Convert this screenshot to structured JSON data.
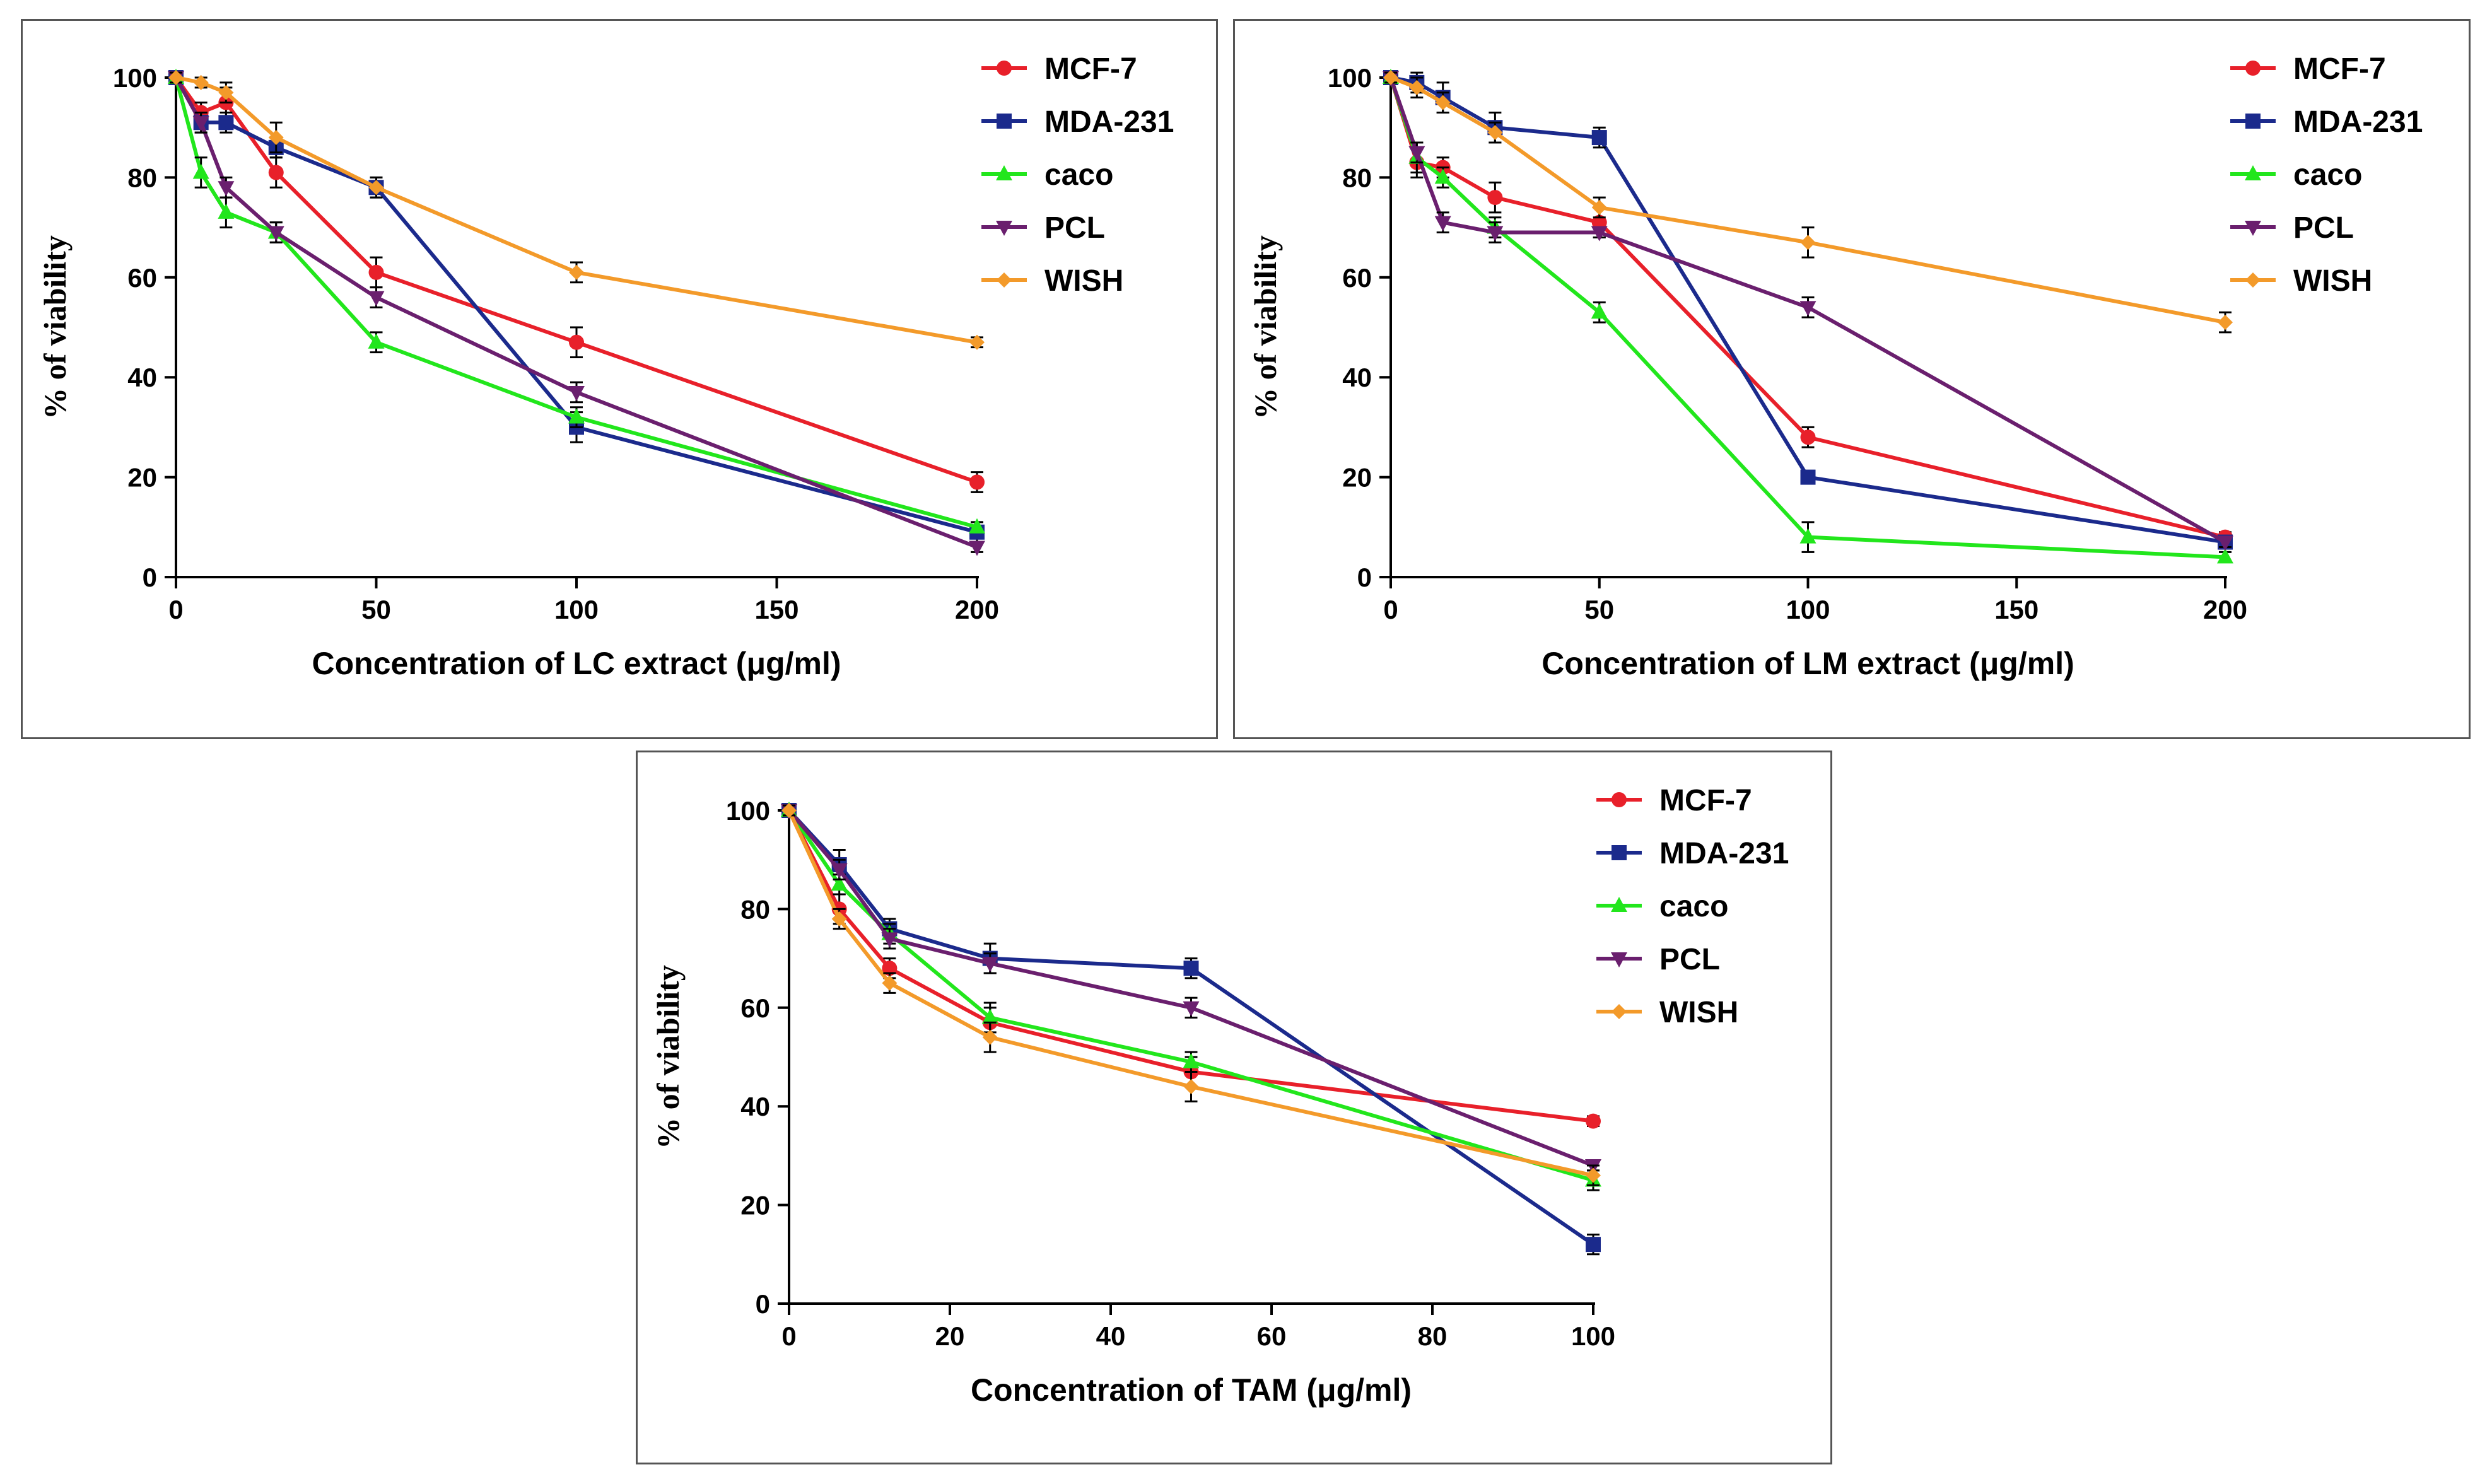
{
  "colors": {
    "MCF-7": "#e8202a",
    "MDA-231": "#1b2a8c",
    "caco": "#22e61c",
    "PCL": "#6a1f6e",
    "WISH": "#f39a2a",
    "axis": "#000000",
    "border": "#555555"
  },
  "chart_data": [
    {
      "type": "line",
      "title": "",
      "xlabel": "Concentration of LC extract (μg/ml)",
      "ylabel": "% of viability",
      "xlim": [
        0,
        200
      ],
      "ylim": [
        0,
        100
      ],
      "xticks": [
        0,
        50,
        100,
        150,
        200
      ],
      "yticks": [
        0,
        20,
        40,
        60,
        80,
        100
      ],
      "legend": "top-right",
      "x": [
        0,
        6.25,
        12.5,
        25,
        50,
        100,
        200
      ],
      "series": [
        {
          "name": "MCF-7",
          "marker": "circle",
          "values": [
            100,
            93,
            95,
            81,
            61,
            47,
            19
          ],
          "errors": [
            1,
            2,
            3,
            3,
            3,
            3,
            2
          ]
        },
        {
          "name": "MDA-231",
          "marker": "square",
          "values": [
            100,
            91,
            91,
            86,
            78,
            30,
            9
          ],
          "errors": [
            1,
            2,
            2,
            2,
            2,
            3,
            2
          ]
        },
        {
          "name": "caco",
          "marker": "triangle-up",
          "values": [
            100,
            81,
            73,
            69,
            47,
            32,
            10
          ],
          "errors": [
            1,
            3,
            3,
            2,
            2,
            2,
            1
          ]
        },
        {
          "name": "PCL",
          "marker": "triangle-down",
          "values": [
            100,
            91,
            78,
            69,
            56,
            37,
            6
          ],
          "errors": [
            1,
            2,
            2,
            2,
            2,
            2,
            1
          ]
        },
        {
          "name": "WISH",
          "marker": "diamond",
          "values": [
            100,
            99,
            97,
            88,
            78,
            61,
            47
          ],
          "errors": [
            1,
            1,
            2,
            3,
            2,
            2,
            1
          ]
        }
      ]
    },
    {
      "type": "line",
      "title": "",
      "xlabel": "Concentration of LM extract (μg/ml)",
      "ylabel": "% of viability",
      "xlim": [
        0,
        200
      ],
      "ylim": [
        0,
        100
      ],
      "xticks": [
        0,
        50,
        100,
        150,
        200
      ],
      "yticks": [
        0,
        20,
        40,
        60,
        80,
        100
      ],
      "legend": "top-right",
      "x": [
        0,
        6.25,
        12.5,
        25,
        50,
        100,
        200
      ],
      "series": [
        {
          "name": "MCF-7",
          "marker": "circle",
          "values": [
            100,
            83,
            82,
            76,
            71,
            28,
            8
          ],
          "errors": [
            1,
            3,
            2,
            3,
            3,
            2,
            1
          ]
        },
        {
          "name": "MDA-231",
          "marker": "square",
          "values": [
            100,
            99,
            96,
            90,
            88,
            20,
            7
          ],
          "errors": [
            1,
            2,
            3,
            3,
            2,
            1,
            1
          ]
        },
        {
          "name": "caco",
          "marker": "triangle-up",
          "values": [
            100,
            84,
            80,
            70,
            53,
            8,
            4
          ],
          "errors": [
            1,
            3,
            2,
            2,
            2,
            3,
            1
          ]
        },
        {
          "name": "PCL",
          "marker": "triangle-down",
          "values": [
            100,
            85,
            71,
            69,
            69,
            54,
            7
          ],
          "errors": [
            1,
            2,
            2,
            2,
            1,
            2,
            1
          ]
        },
        {
          "name": "WISH",
          "marker": "diamond",
          "values": [
            100,
            98,
            95,
            89,
            74,
            67,
            51
          ],
          "errors": [
            1,
            2,
            2,
            2,
            2,
            3,
            2
          ]
        }
      ]
    },
    {
      "type": "line",
      "title": "",
      "xlabel": "Concentration of TAM (μg/ml)",
      "ylabel": "% of viability",
      "xlim": [
        0,
        100
      ],
      "ylim": [
        0,
        100
      ],
      "xticks": [
        0,
        20,
        40,
        60,
        80,
        100
      ],
      "yticks": [
        0,
        20,
        40,
        60,
        80,
        100
      ],
      "legend": "top-right",
      "x": [
        0,
        6.25,
        12.5,
        25,
        50,
        100
      ],
      "series": [
        {
          "name": "MCF-7",
          "marker": "circle",
          "values": [
            100,
            80,
            68,
            57,
            47,
            37
          ],
          "errors": [
            1,
            3,
            2,
            3,
            3,
            1
          ]
        },
        {
          "name": "MDA-231",
          "marker": "square",
          "values": [
            100,
            89,
            76,
            70,
            68,
            12
          ],
          "errors": [
            1,
            3,
            2,
            3,
            2,
            2
          ]
        },
        {
          "name": "caco",
          "marker": "triangle-up",
          "values": [
            100,
            85,
            75,
            58,
            49,
            25
          ],
          "errors": [
            1,
            2,
            2,
            3,
            2,
            2
          ]
        },
        {
          "name": "PCL",
          "marker": "triangle-down",
          "values": [
            100,
            88,
            74,
            69,
            60,
            28
          ],
          "errors": [
            1,
            2,
            2,
            2,
            2,
            1
          ]
        },
        {
          "name": "WISH",
          "marker": "diamond",
          "values": [
            100,
            78,
            65,
            54,
            44,
            26
          ],
          "errors": [
            1,
            2,
            2,
            3,
            3,
            2
          ]
        }
      ]
    }
  ]
}
